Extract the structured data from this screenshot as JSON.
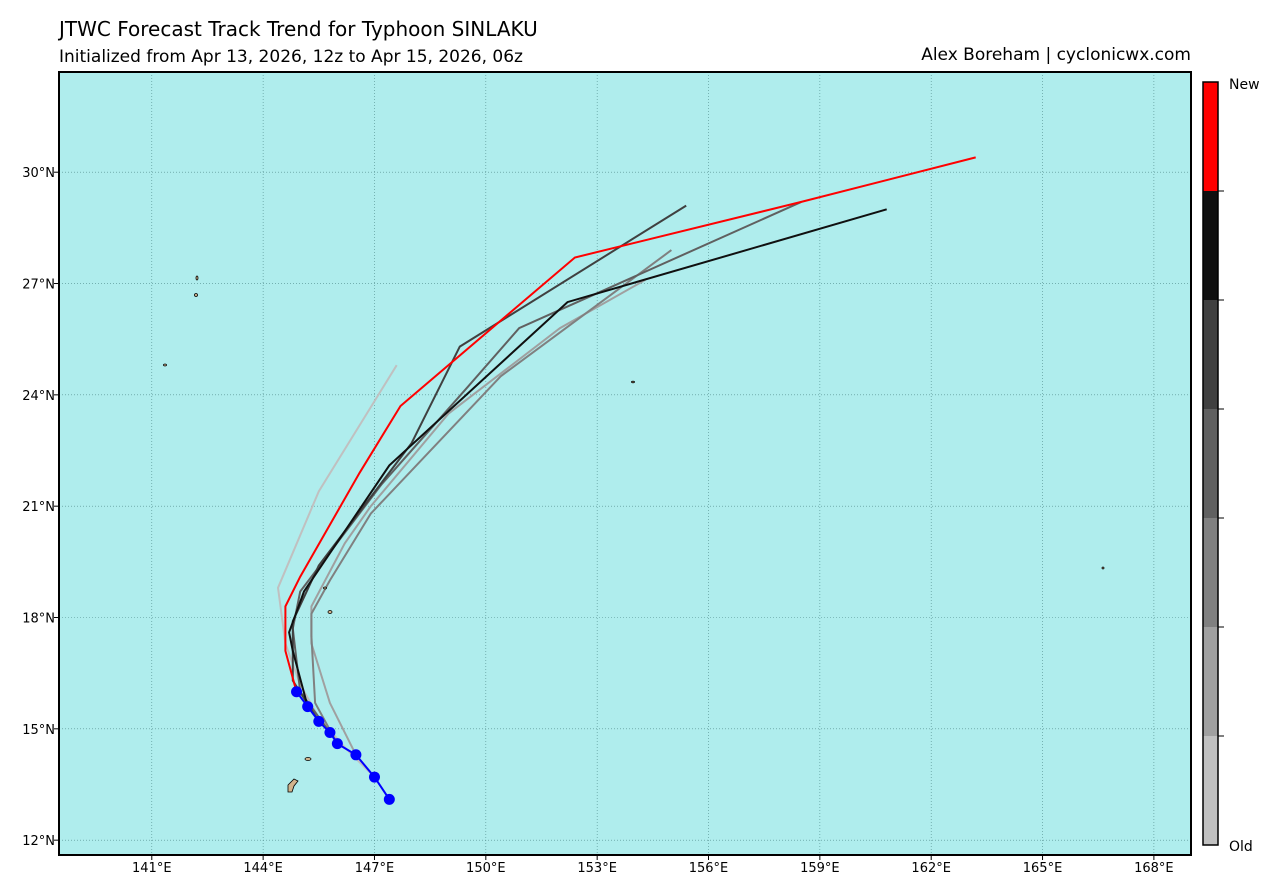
{
  "chart_data": {
    "type": "track",
    "title": "JTWC Forecast Track Trend for Typhoon SINLAKU",
    "subtitle": "Initialized from Apr 13, 2026, 12z to Apr 15, 2026, 06z",
    "credit": "Alex Boreham | cyclonicwx.com",
    "background": "#afeded",
    "grid": true,
    "xlim": [
      138.5,
      169.0
    ],
    "ylim": [
      11.6,
      32.7
    ],
    "xticks": [
      {
        "value": 141,
        "label": "141°E"
      },
      {
        "value": 144,
        "label": "144°E"
      },
      {
        "value": 147,
        "label": "147°E"
      },
      {
        "value": 150,
        "label": "150°E"
      },
      {
        "value": 153,
        "label": "153°E"
      },
      {
        "value": 156,
        "label": "156°E"
      },
      {
        "value": 159,
        "label": "159°E"
      },
      {
        "value": 162,
        "label": "162°E"
      },
      {
        "value": 165,
        "label": "165°E"
      },
      {
        "value": 168,
        "label": "168°E"
      }
    ],
    "yticks": [
      {
        "value": 12,
        "label": "12°N"
      },
      {
        "value": 15,
        "label": "15°N"
      },
      {
        "value": 18,
        "label": "18°N"
      },
      {
        "value": 21,
        "label": "21°N"
      },
      {
        "value": 24,
        "label": "24°N"
      },
      {
        "value": 27,
        "label": "27°N"
      },
      {
        "value": 30,
        "label": "30°N"
      }
    ],
    "colorbar": {
      "top_label": "New",
      "bottom_label": "Old"
    },
    "series": [
      {
        "color": "#c0c0c0",
        "x": [
          147.0,
          146.2,
          145.5,
          145.0,
          144.6,
          144.4,
          145.5,
          147.6
        ],
        "values": [
          13.7,
          14.5,
          15.3,
          16.2,
          17.3,
          18.8,
          21.4,
          24.8
        ]
      },
      {
        "color": "#a0a0a0",
        "x": [
          146.5,
          145.8,
          145.3,
          145.3,
          146.2,
          146.9,
          149.0,
          152.0,
          154.3
        ],
        "values": [
          14.3,
          15.7,
          17.3,
          18.3,
          20.0,
          21.0,
          23.5,
          25.8,
          27.1
        ]
      },
      {
        "color": "#808080",
        "x": [
          146.0,
          145.4,
          145.3,
          145.3,
          145.8,
          146.9,
          150.4,
          155.0
        ],
        "values": [
          14.6,
          15.7,
          17.5,
          18.1,
          19.0,
          20.8,
          24.5,
          27.9
        ]
      },
      {
        "color": "#606060",
        "x": [
          145.8,
          145.0,
          144.8,
          145.0,
          147.2,
          149.5,
          150.9,
          158.5
        ],
        "values": [
          14.9,
          16.0,
          17.7,
          18.7,
          21.6,
          24.2,
          25.8,
          29.2
        ]
      },
      {
        "color": "#404040",
        "x": [
          145.5,
          144.8,
          144.8,
          145.5,
          148.0,
          149.3,
          155.4
        ],
        "values": [
          15.2,
          16.3,
          17.9,
          19.4,
          22.7,
          25.3,
          29.1
        ]
      },
      {
        "color": "#101010",
        "x": [
          145.2,
          144.8,
          144.7,
          145.1,
          147.4,
          152.2,
          160.8
        ],
        "values": [
          15.6,
          17.1,
          17.6,
          18.7,
          22.1,
          26.5,
          29.0
        ]
      },
      {
        "color": "#ff0000",
        "x": [
          144.9,
          144.6,
          144.6,
          145.0,
          146.6,
          147.7,
          152.4,
          158.5,
          163.2
        ],
        "values": [
          16.0,
          17.1,
          18.3,
          19.1,
          21.9,
          23.7,
          27.7,
          29.2,
          30.4
        ]
      }
    ],
    "best_track": {
      "color": "#0000ff",
      "x": [
        147.4,
        147.0,
        146.5,
        146.0,
        145.8,
        145.5,
        145.2,
        144.9
      ],
      "values": [
        13.1,
        13.7,
        14.3,
        14.6,
        14.9,
        15.2,
        15.6,
        16.0
      ]
    }
  }
}
